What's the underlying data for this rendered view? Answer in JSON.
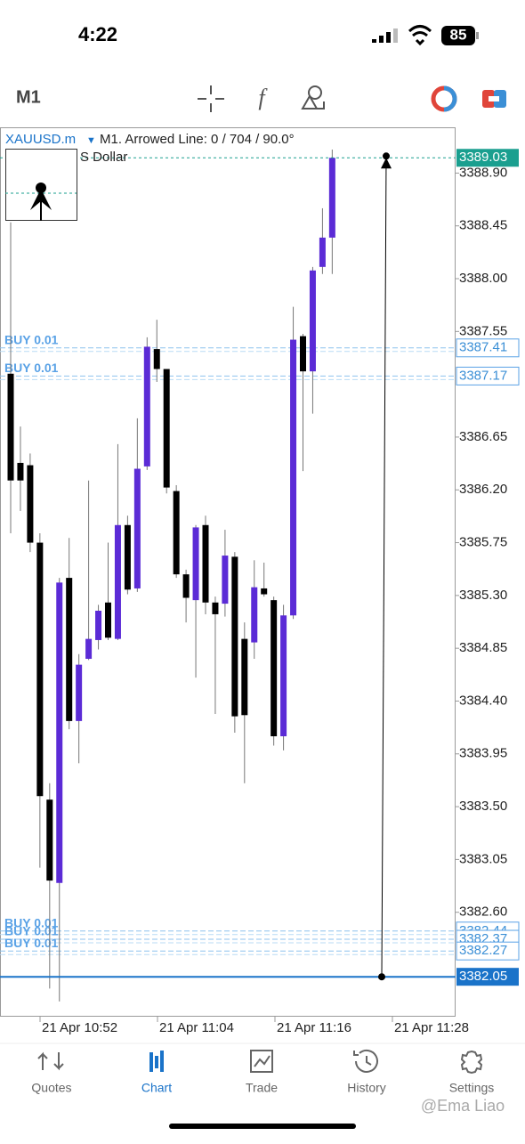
{
  "status_bar": {
    "time": "4:22",
    "battery": "85"
  },
  "toolbar": {
    "timeframe": "M1"
  },
  "chart_data": {
    "type": "candlestick",
    "symbol": "XAUUSD.m",
    "title": "M1. Arrowed Line: 0 / 704 / 90.0°",
    "subtitle": "S Dollar",
    "up_color": "#5b2bd6",
    "down_color": "#000000",
    "open": [
      3387.19,
      3386.43,
      3386.41,
      3385.75,
      3383.56,
      3382.85,
      3385.45,
      3384.23,
      3384.76,
      3384.92,
      3385.24,
      3384.93,
      3385.9,
      3385.36,
      3386.4,
      3387.4,
      3387.23,
      3386.19,
      3385.48,
      3385.26,
      3385.9,
      3385.24,
      3385.23,
      3385.63,
      3384.93,
      3384.9,
      3385.36,
      3385.26,
      3384.1,
      3385.13,
      3387.51,
      3387.21,
      3388.1,
      3388.35
    ],
    "high": [
      3388.48,
      3386.74,
      3386.51,
      3385.83,
      3383.7,
      3385.45,
      3385.79,
      3384.8,
      3386.28,
      3385.22,
      3385.75,
      3386.59,
      3385.98,
      3386.81,
      3387.5,
      3387.65,
      3387.23,
      3386.24,
      3385.52,
      3385.9,
      3385.98,
      3385.29,
      3385.86,
      3385.67,
      3385.07,
      3385.6,
      3385.58,
      3385.29,
      3385.22,
      3387.76,
      3387.53,
      3388.1,
      3388.6,
      3389.1
    ],
    "low": [
      3385.83,
      3386.02,
      3385.67,
      3382.98,
      3381.95,
      3381.84,
      3384.16,
      3383.87,
      3384.75,
      3384.84,
      3384.92,
      3384.92,
      3385.31,
      3385.33,
      3386.37,
      3387.12,
      3386.17,
      3385.45,
      3385.07,
      3384.6,
      3385.14,
      3384.29,
      3385.12,
      3384.13,
      3383.7,
      3384.76,
      3385.29,
      3384.02,
      3383.98,
      3385.1,
      3386.36,
      3386.85,
      3388.04,
      3388.04
    ],
    "close": [
      3386.28,
      3386.28,
      3385.75,
      3383.59,
      3382.87,
      3385.41,
      3384.23,
      3384.71,
      3384.93,
      3385.17,
      3384.94,
      3385.9,
      3385.35,
      3386.38,
      3387.42,
      3387.23,
      3386.22,
      3385.48,
      3385.28,
      3385.88,
      3385.24,
      3385.14,
      3385.64,
      3384.27,
      3384.28,
      3385.37,
      3385.31,
      3384.1,
      3385.13,
      3387.48,
      3387.21,
      3388.07,
      3388.35,
      3389.03
    ],
    "ylim": [
      3381.71,
      3389.29
    ],
    "yticks": [
      {
        "value": 3388.9,
        "label": "3388.90"
      },
      3388.45,
      {
        "value": 3388.0,
        "label": "3388.00"
      },
      3387.55,
      {
        "value": 3386.65,
        "label": "3386.65"
      },
      {
        "value": 3386.2,
        "label": "3386.20"
      },
      3385.75,
      {
        "value": 3385.3,
        "label": "3385.30"
      },
      3384.85,
      {
        "value": 3384.4,
        "label": "3384.40"
      },
      3383.95,
      {
        "value": 3383.5,
        "label": "3383.50"
      },
      3383.05,
      {
        "value": 3382.6,
        "label": "3382.60"
      }
    ],
    "xticks": [
      "21 Apr 10:52",
      "21 Apr 11:04",
      "21 Apr 11:16",
      "21 Apr 11:28"
    ],
    "bid": 3389.03,
    "orders": [
      {
        "label": "BUY 0.01",
        "price": 3387.41
      },
      {
        "label": "BUY 0.01",
        "price": 3387.17
      },
      {
        "label": "BUY 0.01",
        "price": 3382.44
      },
      {
        "label": "BUY 0.01",
        "price": 3382.37
      },
      {
        "label": "BUY 0.01",
        "price": 3382.27
      }
    ],
    "hline": 3382.05,
    "arrowed_line": {
      "from": 3382.05,
      "to": 3389.03
    }
  },
  "tabs": [
    "Quotes",
    "Chart",
    "Trade",
    "History",
    "Settings"
  ],
  "active_tab": "Chart",
  "watermark": "@Ema Liao"
}
